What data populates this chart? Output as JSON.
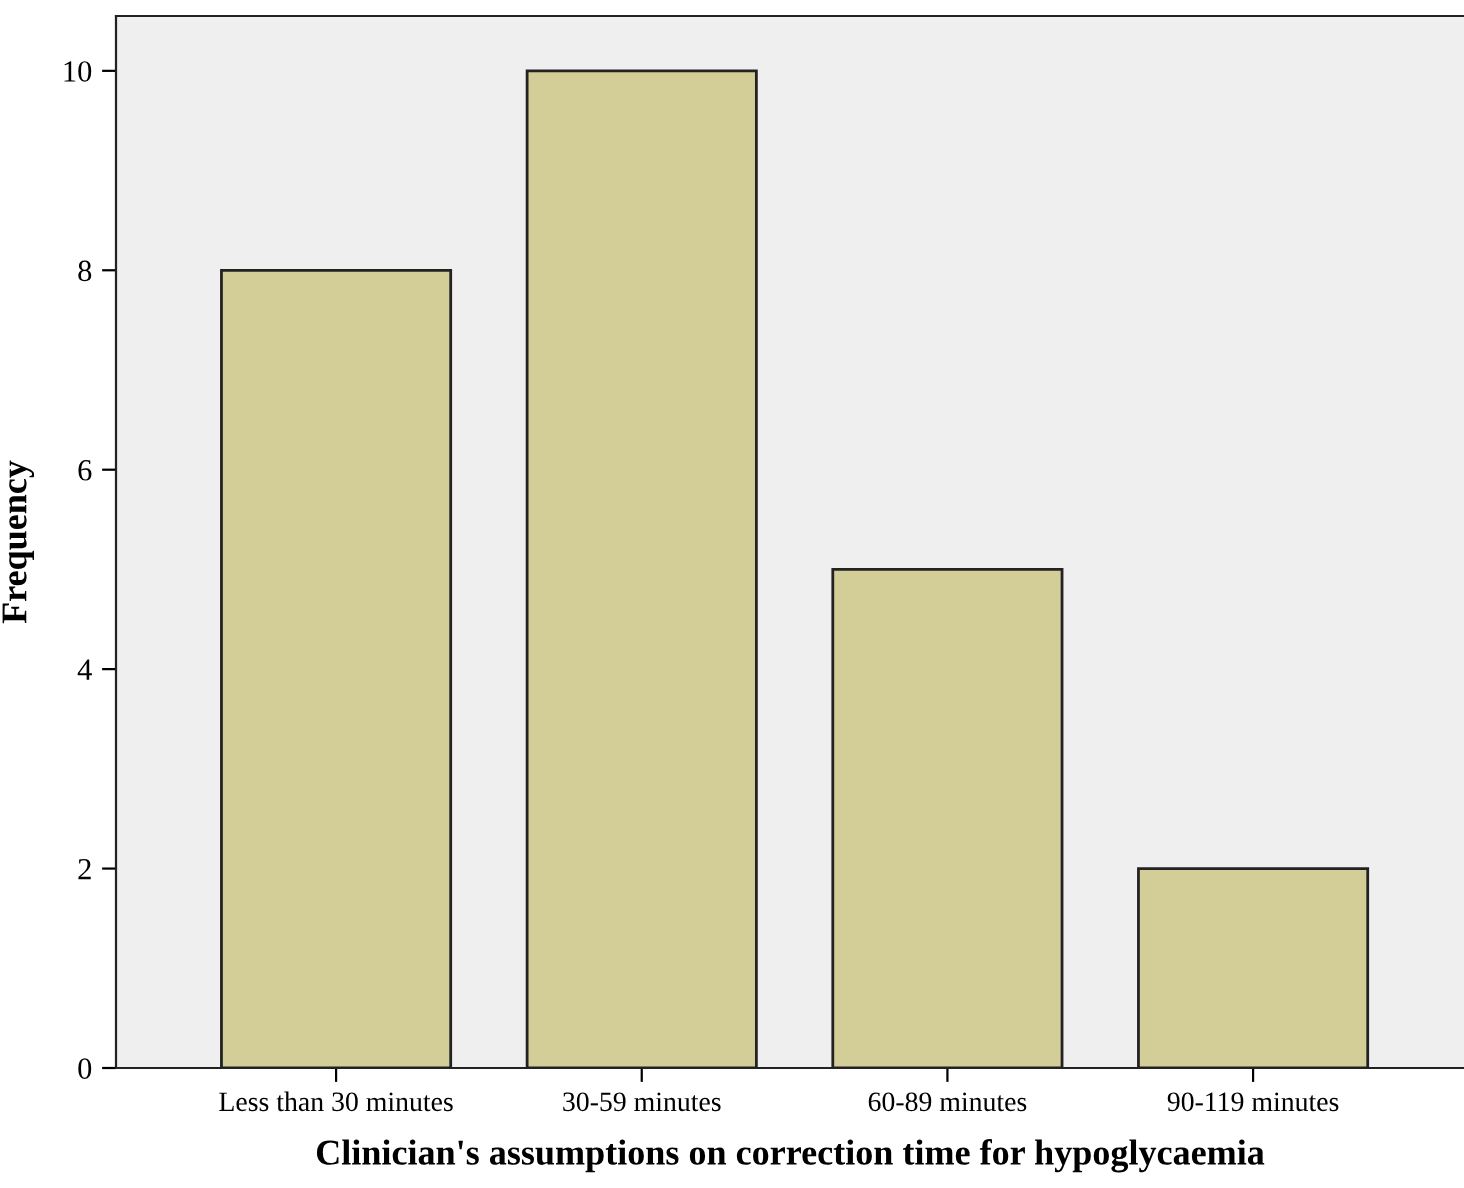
{
  "chart_data": {
    "type": "bar",
    "xlabel": "Clinician's assumptions on correction time for hypoglycaemia",
    "ylabel": "Frequency",
    "categories": [
      "Less than 30 minutes",
      "30-59 minutes",
      "60-89 minutes",
      "90-119 minutes"
    ],
    "values": [
      8,
      10,
      5,
      2
    ],
    "color": "#d3cd97",
    "ylim": [
      0,
      10.55
    ],
    "yticks": [
      0,
      2,
      4,
      6,
      8,
      10
    ],
    "grid": false,
    "legend": false
  }
}
